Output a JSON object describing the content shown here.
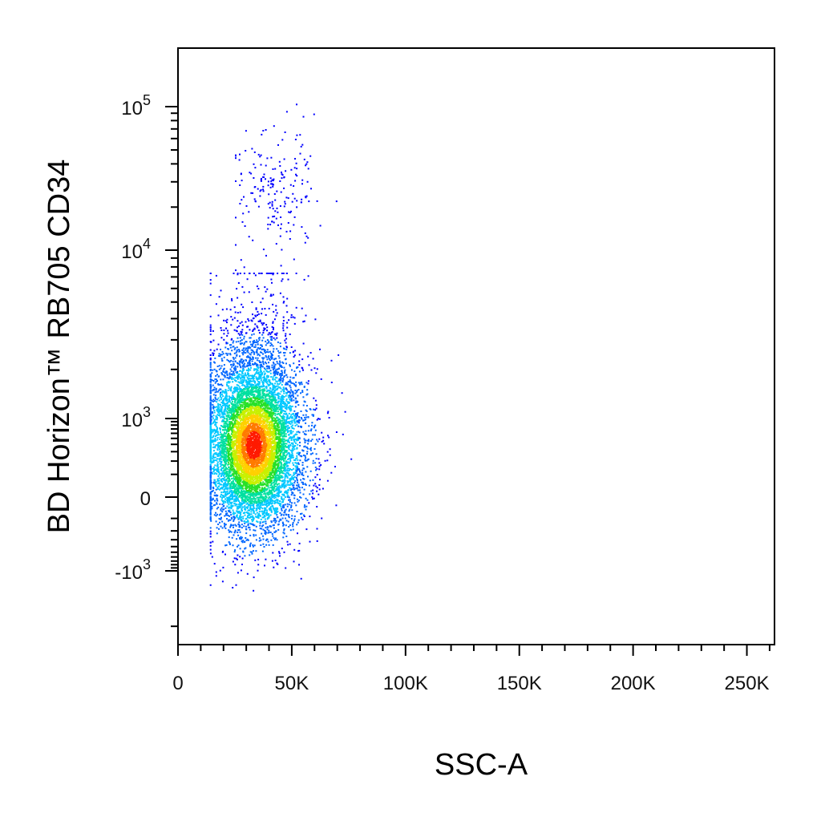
{
  "chart_data": {
    "type": "scatter",
    "style": "density-colored flow cytometry dot plot",
    "xlabel": "SSC-A",
    "ylabel": "BD Horizon™ RB705 CD34",
    "x_scale": "linear",
    "y_scale": "biexponential",
    "xlim": [
      0,
      262144
    ],
    "ylim": [
      -2500,
      200000
    ],
    "x_ticks": [
      {
        "value": 0,
        "label": "0"
      },
      {
        "value": 50000,
        "label": "50K"
      },
      {
        "value": 100000,
        "label": "100K"
      },
      {
        "value": 150000,
        "label": "150K"
      },
      {
        "value": 200000,
        "label": "200K"
      },
      {
        "value": 250000,
        "label": "250K"
      }
    ],
    "y_ticks": [
      {
        "value": -1000,
        "base": "-10",
        "exp": "3"
      },
      {
        "value": 0,
        "base": "0",
        "exp": ""
      },
      {
        "value": 1000,
        "base": "10",
        "exp": "3"
      },
      {
        "value": 10000,
        "base": "10",
        "exp": "4"
      },
      {
        "value": 100000,
        "base": "10",
        "exp": "5"
      }
    ],
    "grid": false,
    "legend": "none",
    "density_colors": [
      "#0000ff",
      "#0066ff",
      "#00c8ff",
      "#00e0a0",
      "#28e028",
      "#c8f000",
      "#ffd000",
      "#ff7a00",
      "#ff1a00"
    ],
    "populations": [
      {
        "name": "main",
        "count": 9000,
        "center_x": 33000,
        "center_y": 400,
        "spread_x": 11000,
        "spread_y_log": 0.42,
        "x_range": [
          14000,
          82000
        ]
      },
      {
        "name": "cd34_positive",
        "count": 200,
        "center_x": 42000,
        "center_y": 25000,
        "spread_x": 9000,
        "spread_y_log": 0.22,
        "x_range": [
          25000,
          78000
        ]
      }
    ]
  }
}
